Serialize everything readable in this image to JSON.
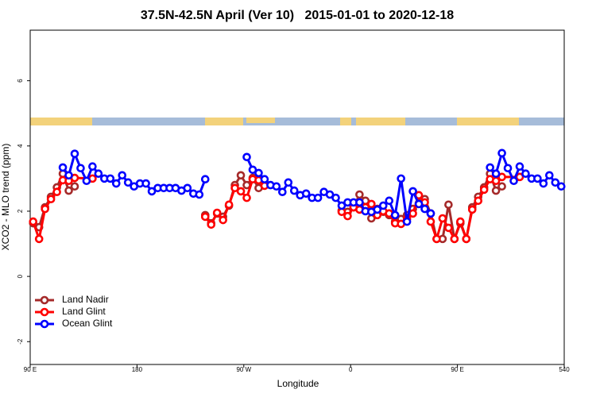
{
  "chart_data": {
    "type": "line",
    "title": "37.5N-42.5N April (Ver 10)   2015-01-01 to 2020-12-18",
    "x_label": "Longitude",
    "y_label": "XCO2 - MLO trend (ppm)",
    "xlim": [
      90,
      540
    ],
    "xticks": [
      {
        "value": 90,
        "label": "90 E"
      },
      180,
      {
        "value": 270,
        "label": "90 W"
      },
      {
        "value": 360,
        "label": "0"
      },
      {
        "value": 450,
        "label": "90 E"
      },
      540
    ],
    "ylim": [
      -2.7,
      7.55
    ],
    "yticks": [
      -2,
      0,
      2,
      4,
      6
    ],
    "legend": "bottom-left",
    "series": [
      {
        "name": "Land Nadir",
        "color": "#a52a2a",
        "x": [
          92.5,
          97.5,
          102.5,
          107.5,
          112.5,
          117.5,
          122.5,
          127.5,
          132.5,
          237.5,
          242.5,
          247.5,
          252.5,
          257.5,
          262.5,
          267.5,
          272.5,
          277.5,
          282.5,
          287.5,
          292.5,
          352.5,
          357.5,
          362.5,
          367.5,
          372.5,
          377.5,
          382.5,
          387.5,
          392.5,
          397.5,
          402.5,
          407.5,
          412.5,
          417.5,
          422.5,
          427.5,
          432.5,
          437.5,
          442.5,
          447.5,
          452.5,
          457.5,
          462.5,
          467.5,
          472.5,
          477.5,
          482.5,
          487.5
        ],
        "values": [
          1.63,
          1.51,
          2.12,
          2.44,
          2.73,
          3.15,
          2.63,
          2.76,
          null,
          1.88,
          1.63,
          1.93,
          1.83,
          2.17,
          2.8,
          3.1,
          2.8,
          3.02,
          2.71,
          2.85,
          null,
          2.02,
          1.98,
          2.12,
          2.51,
          2.32,
          1.78,
          2.07,
          1.98,
          1.88,
          1.68,
          1.76,
          1.88,
          2.07,
          2.24,
          2.37,
          1.93,
          1.15,
          1.15,
          2.2,
          1.15,
          1.63,
          1.15,
          2.12,
          2.44,
          2.73,
          3.15,
          2.63,
          2.76
        ]
      },
      {
        "name": "Land Glint",
        "color": "#ff0000",
        "x": [
          92.5,
          97.5,
          102.5,
          107.5,
          112.5,
          117.5,
          122.5,
          127.5,
          142.5,
          147.5,
          237.5,
          242.5,
          247.5,
          252.5,
          257.5,
          262.5,
          267.5,
          272.5,
          277.5,
          282.5,
          287.5,
          292.5,
          352.5,
          357.5,
          362.5,
          367.5,
          372.5,
          377.5,
          382.5,
          387.5,
          392.5,
          397.5,
          402.5,
          407.5,
          412.5,
          417.5,
          422.5,
          427.5,
          432.5,
          437.5,
          442.5,
          447.5,
          452.5,
          457.5,
          462.5,
          467.5,
          472.5,
          477.5,
          482.5,
          487.5,
          502.5
        ],
        "values": [
          1.68,
          1.15,
          2.07,
          2.37,
          2.59,
          2.95,
          2.93,
          3.02,
          3.0,
          null,
          1.83,
          1.59,
          1.95,
          1.73,
          2.2,
          2.71,
          2.61,
          2.41,
          2.98,
          2.95,
          2.78,
          null,
          1.98,
          1.85,
          2.12,
          2.05,
          2.12,
          2.22,
          1.88,
          2.0,
          1.93,
          1.63,
          1.61,
          1.76,
          1.93,
          2.49,
          2.27,
          1.68,
          1.15,
          1.78,
          1.49,
          1.15,
          1.68,
          1.15,
          2.05,
          2.32,
          2.66,
          2.98,
          2.93,
          3.05,
          3.05
        ]
      },
      {
        "name": "Ocean Glint",
        "color": "#0000ff",
        "x": [
          117.5,
          122.5,
          127.5,
          132.5,
          137.5,
          142.5,
          147.5,
          152.5,
          157.5,
          162.5,
          167.5,
          172.5,
          177.5,
          182.5,
          187.5,
          192.5,
          197.5,
          202.5,
          207.5,
          212.5,
          217.5,
          222.5,
          227.5,
          232.5,
          237.5,
          242.5,
          272.5,
          277.5,
          282.5,
          287.5,
          292.5,
          297.5,
          302.5,
          307.5,
          312.5,
          317.5,
          322.5,
          327.5,
          332.5,
          337.5,
          342.5,
          347.5,
          352.5,
          357.5,
          362.5,
          367.5,
          372.5,
          377.5,
          382.5,
          387.5,
          392.5,
          397.5,
          402.5,
          407.5,
          412.5,
          417.5,
          422.5,
          427.5,
          432.5,
          477.5,
          482.5,
          487.5,
          492.5,
          497.5,
          502.5,
          507.5,
          512.5,
          517.5,
          522.5,
          527.5,
          532.5,
          537.5
        ],
        "values": [
          3.34,
          3.1,
          3.76,
          3.32,
          2.93,
          3.37,
          3.15,
          3.0,
          3.0,
          2.85,
          3.1,
          2.88,
          2.76,
          2.85,
          2.85,
          2.61,
          2.71,
          2.71,
          2.71,
          2.71,
          2.63,
          2.71,
          2.54,
          2.51,
          2.98,
          null,
          3.66,
          3.27,
          3.17,
          2.98,
          2.8,
          2.76,
          2.59,
          2.88,
          2.63,
          2.49,
          2.54,
          2.41,
          2.41,
          2.59,
          2.51,
          2.41,
          2.17,
          2.27,
          2.27,
          2.27,
          2.0,
          1.98,
          2.05,
          2.17,
          2.32,
          1.88,
          3.0,
          1.68,
          2.61,
          2.22,
          2.07,
          1.93,
          null,
          3.34,
          3.15,
          3.78,
          3.32,
          2.93,
          3.37,
          3.15,
          3.0,
          3.0,
          2.85,
          3.1,
          2.88,
          2.76
        ]
      }
    ]
  }
}
